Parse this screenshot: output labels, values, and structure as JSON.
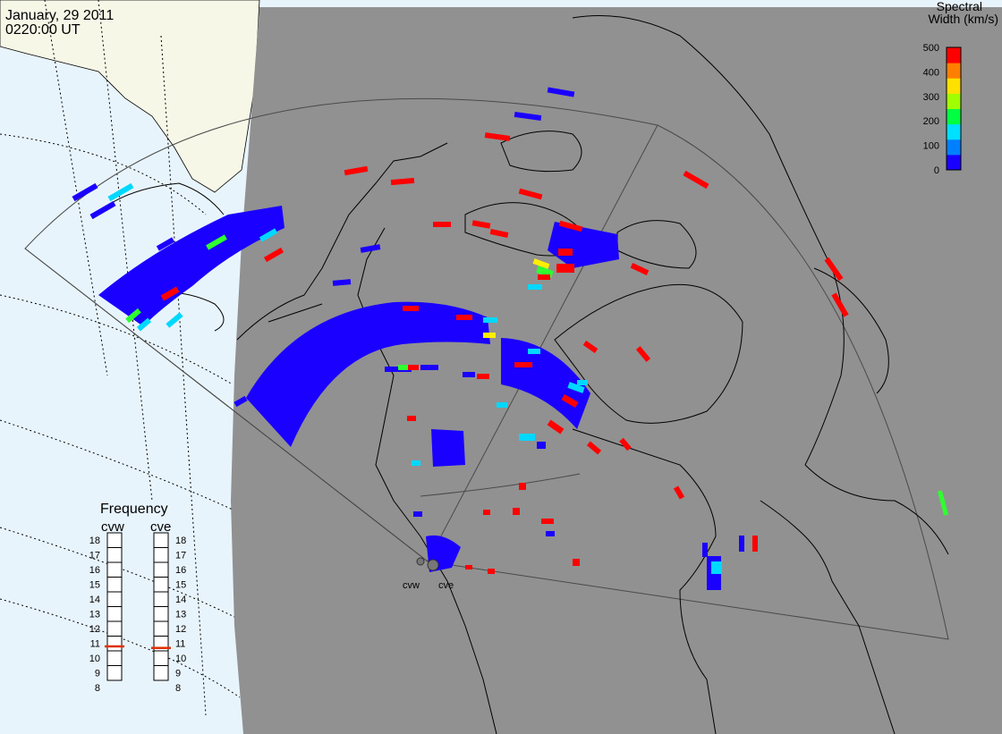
{
  "header": {
    "date": "January, 29 2011",
    "time": "0220:00 UT"
  },
  "colorbar": {
    "title_line1": "Spectral",
    "title_line2": "Width (km/s)",
    "ticks": [
      "0",
      "100",
      "200",
      "300",
      "400",
      "500"
    ],
    "colors": [
      "#1a00ff",
      "#0080ff",
      "#00e0ff",
      "#00ff40",
      "#a0ff00",
      "#ffe000",
      "#ff8000",
      "#ff0000"
    ]
  },
  "frequency": {
    "title": "Frequency",
    "radars": [
      {
        "name": "cvw",
        "selected_mhz": 10.8
      },
      {
        "name": "cve",
        "selected_mhz": 10.7
      }
    ],
    "ticks": [
      "18",
      "17",
      "16",
      "15",
      "14",
      "13",
      "12",
      "11",
      "10",
      "9",
      "8"
    ],
    "marker_color": "#e03000"
  },
  "radars": {
    "labels": [
      "cvw",
      "cve"
    ]
  },
  "map_colors": {
    "ocean": "#e8f4fc",
    "land": "#f7f7e8",
    "night": "#919191",
    "coast": "#000000",
    "fov": "#555555"
  },
  "echo_colors": {
    "low": "#1a00ff",
    "mid": "#00d8ff",
    "green": "#30ff30",
    "yellow": "#ffee00",
    "high": "#ff0000"
  }
}
